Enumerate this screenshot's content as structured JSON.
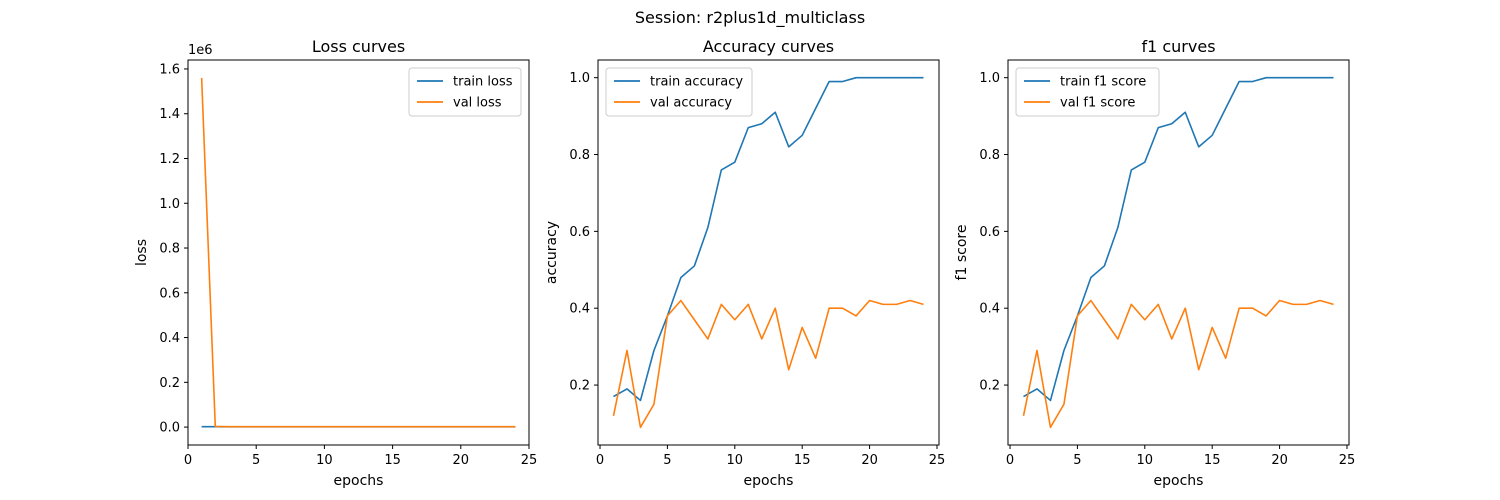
{
  "figure": {
    "suptitle": "Session: r2plus1d_multiclass"
  },
  "colors": {
    "train": "#1f77b4",
    "val": "#ff7f0e"
  },
  "chart_data": [
    {
      "type": "line",
      "title": "Loss curves",
      "xlabel": "epochs",
      "ylabel": "loss",
      "y_offset_text": "1e6",
      "xlim": [
        0,
        25
      ],
      "ylim": [
        -0.08,
        1.64
      ],
      "xticks": [
        0,
        5,
        10,
        15,
        20,
        25
      ],
      "xtick_labels": [
        "0",
        "5",
        "10",
        "15",
        "20",
        "25"
      ],
      "yticks": [
        0.0,
        0.2,
        0.4,
        0.6,
        0.8,
        1.0,
        1.2,
        1.4,
        1.6
      ],
      "ytick_labels": [
        "0.0",
        "0.2",
        "0.4",
        "0.6",
        "0.8",
        "1.0",
        "1.2",
        "1.4",
        "1.6"
      ],
      "grid": false,
      "legend_position": "top-right",
      "x": [
        1,
        2,
        3,
        4,
        5,
        6,
        7,
        8,
        9,
        10,
        11,
        12,
        13,
        14,
        15,
        16,
        17,
        18,
        19,
        20,
        21,
        22,
        23,
        24
      ],
      "series": [
        {
          "name": "train loss",
          "color": "#1f77b4",
          "values": [
            0.002,
            0.002,
            0.001,
            0.001,
            0.001,
            0.001,
            0.001,
            0.001,
            0.001,
            0.001,
            0.001,
            0.001,
            0.001,
            0.001,
            0.001,
            0.001,
            0.001,
            0.001,
            0.001,
            0.001,
            0.001,
            0.001,
            0.001,
            0.001
          ]
        },
        {
          "name": "val loss",
          "color": "#ff7f0e",
          "values": [
            1.56,
            0.003,
            0.002,
            0.002,
            0.002,
            0.002,
            0.002,
            0.002,
            0.002,
            0.002,
            0.002,
            0.002,
            0.002,
            0.002,
            0.002,
            0.002,
            0.002,
            0.002,
            0.002,
            0.002,
            0.002,
            0.002,
            0.002,
            0.002
          ]
        }
      ]
    },
    {
      "type": "line",
      "title": "Accuracy curves",
      "xlabel": "epochs",
      "ylabel": "accuracy",
      "xlim": [
        -0.15,
        25.15
      ],
      "ylim": [
        0.044,
        1.046
      ],
      "xticks": [
        0,
        5,
        10,
        15,
        20,
        25
      ],
      "xtick_labels": [
        "0",
        "5",
        "10",
        "15",
        "20",
        "25"
      ],
      "yticks": [
        0.2,
        0.4,
        0.6,
        0.8,
        1.0
      ],
      "ytick_labels": [
        "0.2",
        "0.4",
        "0.6",
        "0.8",
        "1.0"
      ],
      "grid": false,
      "legend_position": "top-left",
      "x": [
        1,
        2,
        3,
        4,
        5,
        6,
        7,
        8,
        9,
        10,
        11,
        12,
        13,
        14,
        15,
        16,
        17,
        18,
        19,
        20,
        21,
        22,
        23,
        24
      ],
      "series": [
        {
          "name": "train accuracy",
          "color": "#1f77b4",
          "values": [
            0.17,
            0.19,
            0.16,
            0.29,
            0.38,
            0.48,
            0.51,
            0.61,
            0.76,
            0.78,
            0.87,
            0.88,
            0.91,
            0.82,
            0.85,
            0.92,
            0.99,
            0.99,
            1.0,
            1.0,
            1.0,
            1.0,
            1.0,
            1.0
          ]
        },
        {
          "name": "val accuracy",
          "color": "#ff7f0e",
          "values": [
            0.12,
            0.29,
            0.09,
            0.15,
            0.38,
            0.42,
            0.37,
            0.32,
            0.41,
            0.37,
            0.41,
            0.32,
            0.4,
            0.24,
            0.35,
            0.27,
            0.4,
            0.4,
            0.38,
            0.42,
            0.41,
            0.41,
            0.42,
            0.41
          ]
        }
      ]
    },
    {
      "type": "line",
      "title": "f1 curves",
      "xlabel": "epochs",
      "ylabel": "f1 score",
      "xlim": [
        -0.15,
        25.15
      ],
      "ylim": [
        0.044,
        1.046
      ],
      "xticks": [
        0,
        5,
        10,
        15,
        20,
        25
      ],
      "xtick_labels": [
        "0",
        "5",
        "10",
        "15",
        "20",
        "25"
      ],
      "yticks": [
        0.2,
        0.4,
        0.6,
        0.8,
        1.0
      ],
      "ytick_labels": [
        "0.2",
        "0.4",
        "0.6",
        "0.8",
        "1.0"
      ],
      "grid": false,
      "legend_position": "top-left",
      "x": [
        1,
        2,
        3,
        4,
        5,
        6,
        7,
        8,
        9,
        10,
        11,
        12,
        13,
        14,
        15,
        16,
        17,
        18,
        19,
        20,
        21,
        22,
        23,
        24
      ],
      "series": [
        {
          "name": "train f1 score",
          "color": "#1f77b4",
          "values": [
            0.17,
            0.19,
            0.16,
            0.29,
            0.38,
            0.48,
            0.51,
            0.61,
            0.76,
            0.78,
            0.87,
            0.88,
            0.91,
            0.82,
            0.85,
            0.92,
            0.99,
            0.99,
            1.0,
            1.0,
            1.0,
            1.0,
            1.0,
            1.0
          ]
        },
        {
          "name": "val f1 score",
          "color": "#ff7f0e",
          "values": [
            0.12,
            0.29,
            0.09,
            0.15,
            0.38,
            0.42,
            0.37,
            0.32,
            0.41,
            0.37,
            0.41,
            0.32,
            0.4,
            0.24,
            0.35,
            0.27,
            0.4,
            0.4,
            0.38,
            0.42,
            0.41,
            0.41,
            0.42,
            0.41
          ]
        }
      ]
    }
  ]
}
